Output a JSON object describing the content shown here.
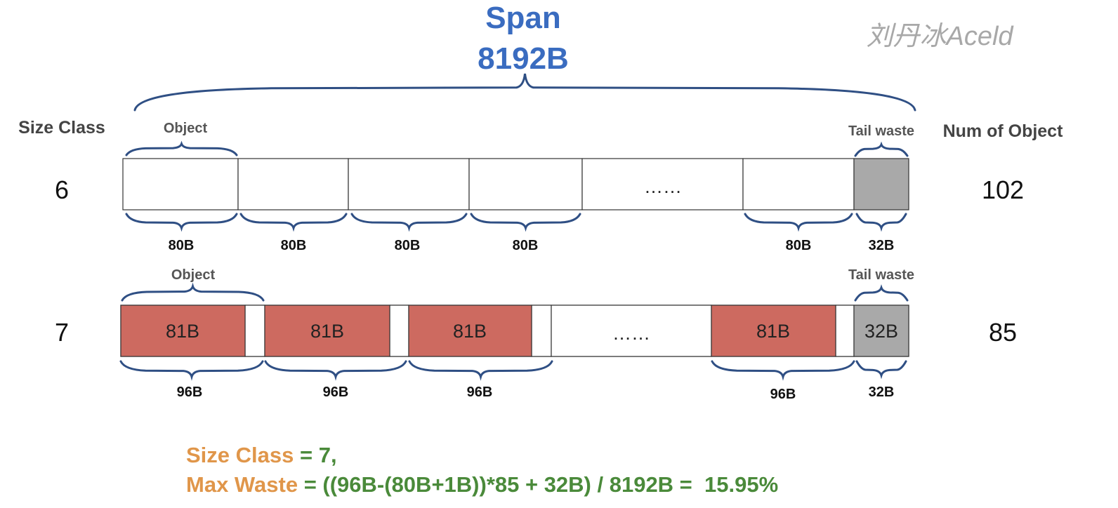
{
  "span": {
    "title": "Span",
    "size": "8192B"
  },
  "watermark": "刘丹冰Aceld",
  "headers": {
    "size_class": "Size Class",
    "num_objects": "Num of Object"
  },
  "rows": [
    {
      "size_class": "6",
      "num_objects": "102",
      "object_label": "Object",
      "tail_label": "Tail waste",
      "ellipsis": "……",
      "object_sizes": [
        "80B",
        "80B",
        "80B",
        "80B",
        "80B"
      ],
      "tail_size": "32B"
    },
    {
      "size_class": "7",
      "num_objects": "85",
      "object_label": "Object",
      "tail_label": "Tail waste",
      "ellipsis": "……",
      "cell_texts": [
        "81B",
        "81B",
        "81B",
        "81B"
      ],
      "tail_text": "32B",
      "object_sizes": [
        "96B",
        "96B",
        "96B",
        "96B"
      ],
      "tail_size": "32B"
    }
  ],
  "formula": {
    "line1_label": "Size Class",
    "line1_value": " = 7,",
    "line2_label": "Max Waste",
    "line2_value": " = ((96B-(80B+1B))*85 + 32B) / 8192B =  15.95%"
  },
  "colors": {
    "brace": "#2f4f84",
    "object_fill": "#cd6a60",
    "tail_fill": "#a9a9a9",
    "title": "#3a6cc0",
    "formula_label": "#e0964a",
    "formula_value": "#4a8a3a"
  }
}
